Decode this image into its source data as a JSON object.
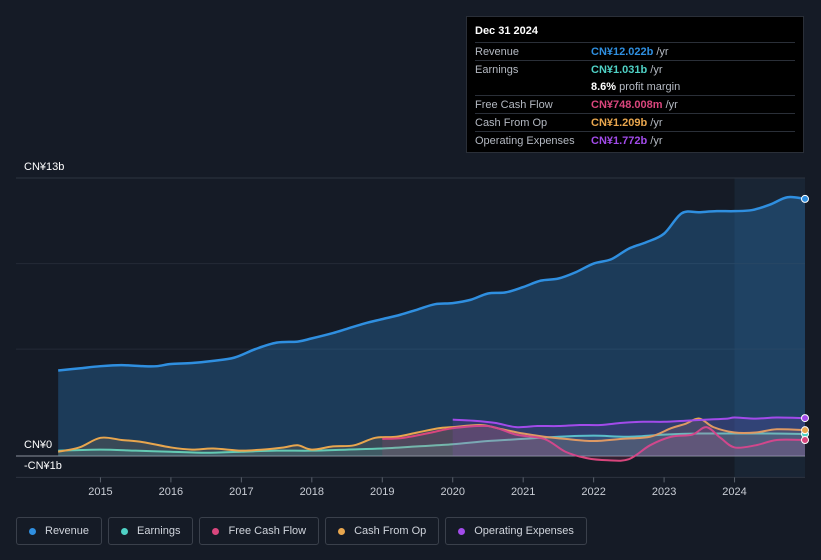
{
  "tooltip": {
    "date": "Dec 31 2024",
    "rows": [
      {
        "label": "Revenue",
        "value": "CN¥12.022b",
        "unit": "/yr"
      },
      {
        "label": "Earnings",
        "value": "CN¥1.031b",
        "unit": "/yr"
      },
      {
        "label": "",
        "value": "8.6%",
        "unit": "profit margin"
      },
      {
        "label": "Free Cash Flow",
        "value": "CN¥748.008m",
        "unit": "/yr"
      },
      {
        "label": "Cash From Op",
        "value": "CN¥1.209b",
        "unit": "/yr"
      },
      {
        "label": "Operating Expenses",
        "value": "CN¥1.772b",
        "unit": "/yr"
      }
    ]
  },
  "legend": [
    {
      "label": "Revenue"
    },
    {
      "label": "Earnings"
    },
    {
      "label": "Free Cash Flow"
    },
    {
      "label": "Cash From Op"
    },
    {
      "label": "Operating Expenses"
    }
  ],
  "colors": {
    "revenue": "#2f8fe0",
    "earnings": "#4fd1c5",
    "fcf": "#d9467d",
    "cfo": "#e8a64e",
    "opex": "#a24bea"
  },
  "chart_data": {
    "type": "area",
    "title": "",
    "xlabel": "",
    "ylabel": "",
    "ylim": [
      -1,
      13
    ],
    "y_tick_labels": [
      "CN¥13b",
      "CN¥0",
      "-CN¥1b"
    ],
    "x_tick_labels": [
      "2015",
      "2016",
      "2017",
      "2018",
      "2019",
      "2020",
      "2021",
      "2022",
      "2023",
      "2024"
    ],
    "forecast_start": 2024.0,
    "series": [
      {
        "name": "Revenue",
        "key": "revenue",
        "x": [
          2014.4,
          2014.7,
          2015.0,
          2015.3,
          2015.6,
          2015.8,
          2016.0,
          2016.3,
          2016.6,
          2016.9,
          2017.2,
          2017.5,
          2017.8,
          2018.0,
          2018.3,
          2018.5,
          2018.75,
          2019.0,
          2019.25,
          2019.5,
          2019.75,
          2020.0,
          2020.25,
          2020.5,
          2020.75,
          2021.0,
          2021.25,
          2021.5,
          2021.75,
          2022.0,
          2022.25,
          2022.5,
          2022.75,
          2023.0,
          2023.25,
          2023.5,
          2023.75,
          2024.0,
          2024.25,
          2024.5,
          2024.75,
          2025.0
        ],
        "values": [
          4.0,
          4.1,
          4.2,
          4.25,
          4.2,
          4.2,
          4.3,
          4.35,
          4.45,
          4.6,
          5.0,
          5.3,
          5.35,
          5.5,
          5.75,
          5.95,
          6.2,
          6.4,
          6.6,
          6.85,
          7.1,
          7.15,
          7.3,
          7.6,
          7.65,
          7.9,
          8.2,
          8.3,
          8.6,
          9.0,
          9.2,
          9.7,
          10.0,
          10.4,
          11.35,
          11.4,
          11.45,
          11.45,
          11.5,
          11.75,
          12.1,
          12.022
        ]
      },
      {
        "name": "Earnings",
        "key": "earnings",
        "x": [
          2014.4,
          2015.0,
          2015.5,
          2016.0,
          2016.5,
          2017.0,
          2017.5,
          2018.0,
          2018.5,
          2019.0,
          2019.5,
          2020.0,
          2020.5,
          2021.0,
          2021.5,
          2022.0,
          2022.5,
          2023.0,
          2023.5,
          2024.0,
          2024.5,
          2025.0
        ],
        "values": [
          0.25,
          0.3,
          0.25,
          0.2,
          0.15,
          0.2,
          0.25,
          0.25,
          0.3,
          0.35,
          0.45,
          0.55,
          0.7,
          0.8,
          0.9,
          0.95,
          0.9,
          1.0,
          1.05,
          1.05,
          1.05,
          1.031
        ]
      },
      {
        "name": "Free Cash Flow",
        "key": "fcf",
        "x": [
          2019.0,
          2019.3,
          2019.7,
          2020.0,
          2020.5,
          2020.9,
          2021.3,
          2021.6,
          2021.9,
          2022.2,
          2022.5,
          2022.8,
          2023.1,
          2023.4,
          2023.6,
          2023.8,
          2024.0,
          2024.3,
          2024.6,
          2025.0
        ],
        "values": [
          0.8,
          0.85,
          1.1,
          1.3,
          1.4,
          1.0,
          0.8,
          0.2,
          -0.1,
          -0.2,
          -0.15,
          0.5,
          0.9,
          1.0,
          1.35,
          0.85,
          0.4,
          0.5,
          0.75,
          0.748
        ]
      },
      {
        "name": "Cash From Op",
        "key": "cfo",
        "x": [
          2014.4,
          2014.7,
          2015.0,
          2015.3,
          2015.6,
          2016.0,
          2016.3,
          2016.6,
          2017.0,
          2017.3,
          2017.6,
          2017.8,
          2018.0,
          2018.3,
          2018.6,
          2018.9,
          2019.2,
          2019.5,
          2019.8,
          2020.0,
          2020.4,
          2020.7,
          2021.0,
          2021.3,
          2021.6,
          2022.0,
          2022.4,
          2022.8,
          2023.1,
          2023.3,
          2023.5,
          2023.7,
          2024.0,
          2024.3,
          2024.6,
          2025.0
        ],
        "values": [
          0.2,
          0.4,
          0.85,
          0.75,
          0.65,
          0.4,
          0.3,
          0.35,
          0.25,
          0.3,
          0.4,
          0.5,
          0.3,
          0.45,
          0.5,
          0.85,
          0.9,
          1.1,
          1.3,
          1.35,
          1.45,
          1.25,
          1.05,
          0.9,
          0.8,
          0.7,
          0.8,
          0.9,
          1.3,
          1.5,
          1.75,
          1.35,
          1.1,
          1.1,
          1.25,
          1.209
        ]
      },
      {
        "name": "Operating Expenses",
        "key": "opex",
        "x": [
          2020.0,
          2020.3,
          2020.6,
          2020.9,
          2021.2,
          2021.5,
          2021.8,
          2022.1,
          2022.4,
          2022.7,
          2023.0,
          2023.3,
          2023.6,
          2023.9,
          2024.0,
          2024.3,
          2024.6,
          2025.0
        ],
        "values": [
          1.7,
          1.65,
          1.55,
          1.35,
          1.4,
          1.4,
          1.45,
          1.45,
          1.55,
          1.6,
          1.6,
          1.65,
          1.7,
          1.75,
          1.8,
          1.75,
          1.8,
          1.772
        ]
      }
    ]
  }
}
